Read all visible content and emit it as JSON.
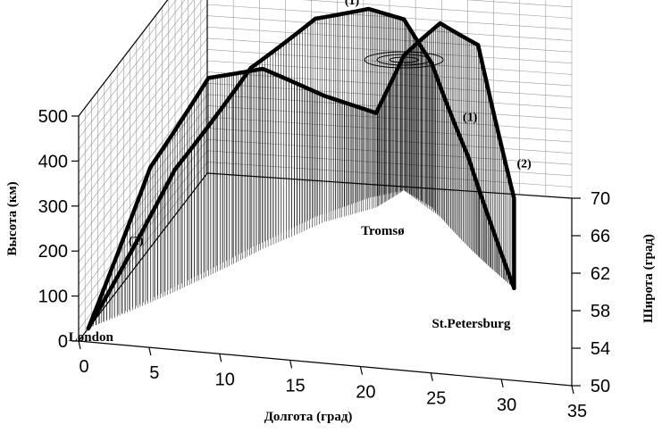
{
  "chart_data": {
    "type": "line",
    "projection": "3d",
    "title": "",
    "xlabel": "Долгота (град)",
    "ylabel": "Широта (град)",
    "zlabel": "Высота (км)",
    "xlim": [
      0,
      35
    ],
    "ylim": [
      50,
      70
    ],
    "zlim": [
      0,
      500
    ],
    "x_ticks": [
      "0",
      "5",
      "10",
      "15",
      "20",
      "25",
      "30",
      "35"
    ],
    "y_ticks": [
      "50",
      "54",
      "58",
      "62",
      "66",
      "70"
    ],
    "z_ticks": [
      "0",
      "100",
      "200",
      "300",
      "400",
      "500"
    ],
    "grid": true,
    "places": [
      {
        "name": "London",
        "lon": 0,
        "lat": 51.5
      },
      {
        "name": "Tromsø",
        "lon": 19,
        "lat": 69.6
      },
      {
        "name": "St.Petersburg",
        "lon": 30.3,
        "lat": 59.9
      }
    ],
    "series": [
      {
        "name": "(1)",
        "points": [
          {
            "lon": 0,
            "lat": 51.5,
            "alt": 0
          },
          {
            "lon": 4,
            "lat": 57,
            "alt": 260
          },
          {
            "lon": 8,
            "lat": 62,
            "alt": 400
          },
          {
            "lon": 12,
            "lat": 66,
            "alt": 440
          },
          {
            "lon": 16,
            "lat": 68.5,
            "alt": 420
          },
          {
            "lon": 19,
            "lat": 69.6,
            "alt": 380
          },
          {
            "lon": 22,
            "lat": 68,
            "alt": 320
          },
          {
            "lon": 26,
            "lat": 64,
            "alt": 200
          },
          {
            "lon": 30.3,
            "lat": 59.9,
            "alt": 0
          }
        ]
      },
      {
        "name": "(2)",
        "points": [
          {
            "lon": 0,
            "lat": 51.5,
            "alt": 0
          },
          {
            "lon": 3,
            "lat": 55,
            "alt": 300
          },
          {
            "lon": 6,
            "lat": 58.5,
            "alt": 440
          },
          {
            "lon": 9,
            "lat": 62,
            "alt": 400
          },
          {
            "lon": 13,
            "lat": 65.5,
            "alt": 280
          },
          {
            "lon": 17,
            "lat": 67.5,
            "alt": 210
          },
          {
            "lon": 19,
            "lat": 69.6,
            "alt": 300
          },
          {
            "lon": 23,
            "lat": 67,
            "alt": 430
          },
          {
            "lon": 27,
            "lat": 63,
            "alt": 470
          },
          {
            "lon": 30.3,
            "lat": 59.9,
            "alt": 200
          },
          {
            "lon": 30.3,
            "lat": 59.9,
            "alt": 0
          }
        ]
      }
    ]
  }
}
